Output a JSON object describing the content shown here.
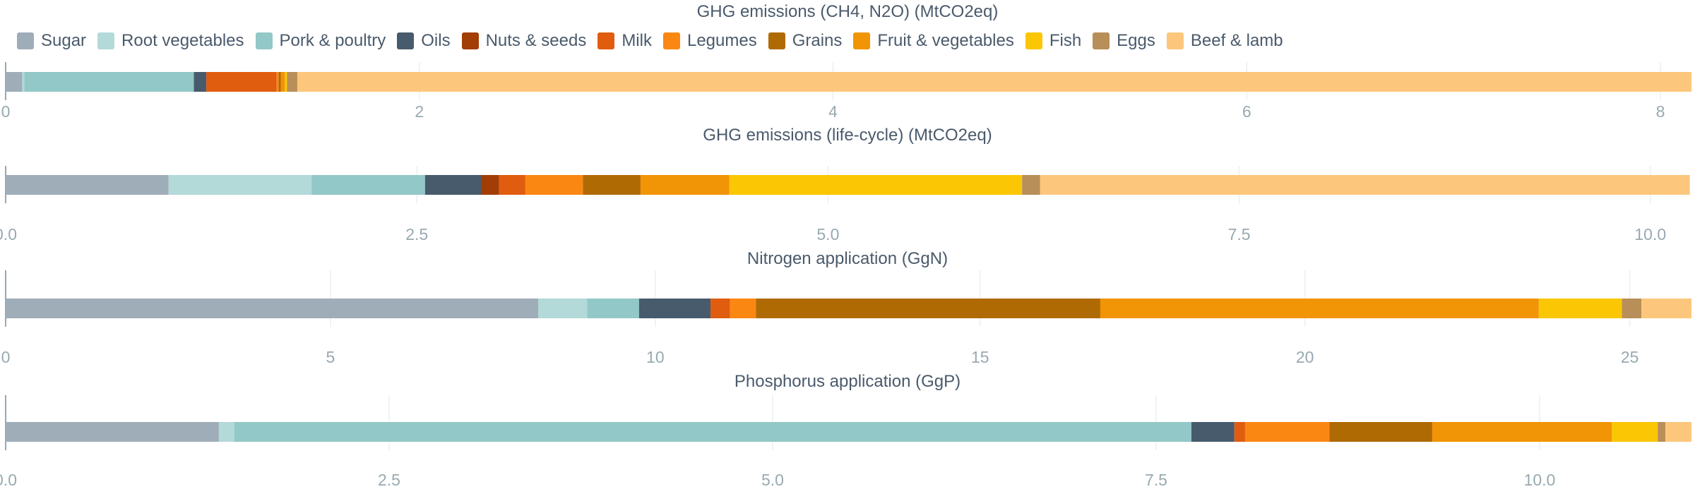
{
  "colors": {
    "Sugar": "#9fadb9",
    "Root vegetables": "#b3d9d8",
    "Pork & poultry": "#92c8c7",
    "Oils": "#485b6d",
    "Nuts & seeds": "#a13d05",
    "Milk": "#e05c0f",
    "Legumes": "#fb8713",
    "Grains": "#b06a04",
    "Fruit & vegetables": "#f19405",
    "Fish": "#fbc603",
    "Eggs": "#b88f58",
    "Beef & lamb": "#fcc77c"
  },
  "legend": [
    "Sugar",
    "Root vegetables",
    "Pork & poultry",
    "Oils",
    "Nuts & seeds",
    "Milk",
    "Legumes",
    "Grains",
    "Fruit & vegetables",
    "Fish",
    "Eggs",
    "Beef & lamb"
  ],
  "chart_data": [
    {
      "type": "bar",
      "orientation": "horizontal-stacked",
      "title": "GHG emissions (CH4, N2O) (MtCO2eq)",
      "xlim": [
        0,
        8.15
      ],
      "ticks": [
        0,
        2,
        4,
        6,
        8
      ],
      "tick_labels": [
        "0",
        "2",
        "4",
        "6",
        "8"
      ],
      "series": [
        {
          "name": "Sugar",
          "value": 0.08
        },
        {
          "name": "Root vegetables",
          "value": 0.01
        },
        {
          "name": "Pork & poultry",
          "value": 0.82
        },
        {
          "name": "Oils",
          "value": 0.06
        },
        {
          "name": "Nuts & seeds",
          "value": 0.0
        },
        {
          "name": "Milk",
          "value": 0.34
        },
        {
          "name": "Legumes",
          "value": 0.01
        },
        {
          "name": "Grains",
          "value": 0.01
        },
        {
          "name": "Fruit & vegetables",
          "value": 0.02
        },
        {
          "name": "Fish",
          "value": 0.01
        },
        {
          "name": "Eggs",
          "value": 0.05
        },
        {
          "name": "Beef & lamb",
          "value": 6.74
        }
      ]
    },
    {
      "type": "bar",
      "orientation": "horizontal-stacked",
      "title": "GHG emissions (life-cycle) (MtCO2eq)",
      "xlim": [
        0,
        10.25
      ],
      "ticks": [
        0,
        2.5,
        5,
        7.5,
        10
      ],
      "tick_labels": [
        "0.0",
        "2.5",
        "5.0",
        "7.5",
        "10.0"
      ],
      "series": [
        {
          "name": "Sugar",
          "value": 0.99
        },
        {
          "name": "Root vegetables",
          "value": 0.87
        },
        {
          "name": "Pork & poultry",
          "value": 0.69
        },
        {
          "name": "Oils",
          "value": 0.34
        },
        {
          "name": "Nuts & seeds",
          "value": 0.11
        },
        {
          "name": "Milk",
          "value": 0.16
        },
        {
          "name": "Legumes",
          "value": 0.35
        },
        {
          "name": "Grains",
          "value": 0.35
        },
        {
          "name": "Fruit & vegetables",
          "value": 0.54
        },
        {
          "name": "Fish",
          "value": 1.78
        },
        {
          "name": "Eggs",
          "value": 0.11
        },
        {
          "name": "Beef & lamb",
          "value": 3.95
        }
      ]
    },
    {
      "type": "bar",
      "orientation": "horizontal-stacked",
      "title": "Nitrogen application (GgN)",
      "xlim": [
        0,
        25.95
      ],
      "ticks": [
        0,
        5,
        10,
        15,
        20,
        25
      ],
      "tick_labels": [
        "0",
        "5",
        "10",
        "15",
        "20",
        "25"
      ],
      "series": [
        {
          "name": "Sugar",
          "value": 8.2
        },
        {
          "name": "Root vegetables",
          "value": 0.75
        },
        {
          "name": "Pork & poultry",
          "value": 0.8
        },
        {
          "name": "Oils",
          "value": 1.1
        },
        {
          "name": "Nuts & seeds",
          "value": 0.0
        },
        {
          "name": "Milk",
          "value": 0.3
        },
        {
          "name": "Legumes",
          "value": 0.4
        },
        {
          "name": "Grains",
          "value": 5.3
        },
        {
          "name": "Fruit & vegetables",
          "value": 6.75
        },
        {
          "name": "Fish",
          "value": 1.28
        },
        {
          "name": "Eggs",
          "value": 0.3
        },
        {
          "name": "Beef & lamb",
          "value": 0.77
        }
      ]
    },
    {
      "type": "bar",
      "orientation": "horizontal-stacked",
      "title": "Phosphorus application (GgP)",
      "xlim": [
        0,
        10.99
      ],
      "ticks": [
        0,
        2.5,
        5,
        7.5,
        10
      ],
      "tick_labels": [
        "0.0",
        "2.5",
        "5.0",
        "7.5",
        "10.0"
      ],
      "series": [
        {
          "name": "Sugar",
          "value": 1.39
        },
        {
          "name": "Root vegetables",
          "value": 0.1
        },
        {
          "name": "Pork & poultry",
          "value": 6.24
        },
        {
          "name": "Oils",
          "value": 0.28
        },
        {
          "name": "Nuts & seeds",
          "value": 0.0
        },
        {
          "name": "Milk",
          "value": 0.07
        },
        {
          "name": "Legumes",
          "value": 0.55
        },
        {
          "name": "Grains",
          "value": 0.67
        },
        {
          "name": "Fruit & vegetables",
          "value": 1.17
        },
        {
          "name": "Fish",
          "value": 0.3
        },
        {
          "name": "Eggs",
          "value": 0.05
        },
        {
          "name": "Beef & lamb",
          "value": 0.17
        }
      ]
    }
  ]
}
